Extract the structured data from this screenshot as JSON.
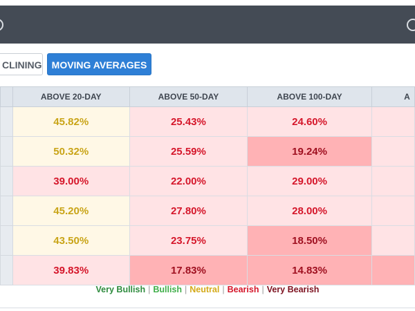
{
  "header": {},
  "tabs": [
    {
      "label": "CLINING",
      "selected": false
    },
    {
      "label": "MOVING AVERAGES",
      "selected": true
    }
  ],
  "table": {
    "columns": [
      "ABOVE 20-DAY",
      "ABOVE 50-DAY",
      "ABOVE 100-DAY",
      "A"
    ],
    "rows": [
      {
        "cells": [
          {
            "value": "45.82%",
            "sentiment": "neutral"
          },
          {
            "value": "25.43%",
            "sentiment": "bearish"
          },
          {
            "value": "24.60%",
            "sentiment": "bearish"
          },
          {
            "value": "",
            "sentiment": "bearish"
          }
        ]
      },
      {
        "cells": [
          {
            "value": "50.32%",
            "sentiment": "neutral"
          },
          {
            "value": "25.59%",
            "sentiment": "bearish"
          },
          {
            "value": "19.24%",
            "sentiment": "very-bearish"
          },
          {
            "value": "",
            "sentiment": "bearish"
          }
        ]
      },
      {
        "cells": [
          {
            "value": "39.00%",
            "sentiment": "bearish"
          },
          {
            "value": "22.00%",
            "sentiment": "bearish"
          },
          {
            "value": "29.00%",
            "sentiment": "bearish"
          },
          {
            "value": "",
            "sentiment": "bearish"
          }
        ]
      },
      {
        "cells": [
          {
            "value": "45.20%",
            "sentiment": "neutral"
          },
          {
            "value": "27.80%",
            "sentiment": "bearish"
          },
          {
            "value": "28.00%",
            "sentiment": "bearish"
          },
          {
            "value": "",
            "sentiment": "bearish"
          }
        ]
      },
      {
        "cells": [
          {
            "value": "43.50%",
            "sentiment": "neutral"
          },
          {
            "value": "23.75%",
            "sentiment": "bearish"
          },
          {
            "value": "18.50%",
            "sentiment": "very-bearish"
          },
          {
            "value": "",
            "sentiment": "bearish"
          }
        ]
      },
      {
        "cells": [
          {
            "value": "39.83%",
            "sentiment": "bearish"
          },
          {
            "value": "17.83%",
            "sentiment": "very-bearish"
          },
          {
            "value": "14.83%",
            "sentiment": "very-bearish"
          },
          {
            "value": "",
            "sentiment": "very-bearish"
          }
        ]
      }
    ]
  },
  "legend": [
    {
      "label": "Very Bullish",
      "color": "#2e8b3e"
    },
    {
      "label": "Bullish",
      "color": "#3fae49"
    },
    {
      "label": "Neutral",
      "color": "#d4aa1a"
    },
    {
      "label": "Bearish",
      "color": "#d5162a"
    },
    {
      "label": "Very Bearish",
      "color": "#7d1220"
    }
  ],
  "colors": {
    "header_bg": "#444b55",
    "accent": "#2e7fd6",
    "neutral_bg": "#fff8e6",
    "bearish_bg": "#ffe3e5",
    "very_bearish_bg": "#ffb2b5"
  }
}
